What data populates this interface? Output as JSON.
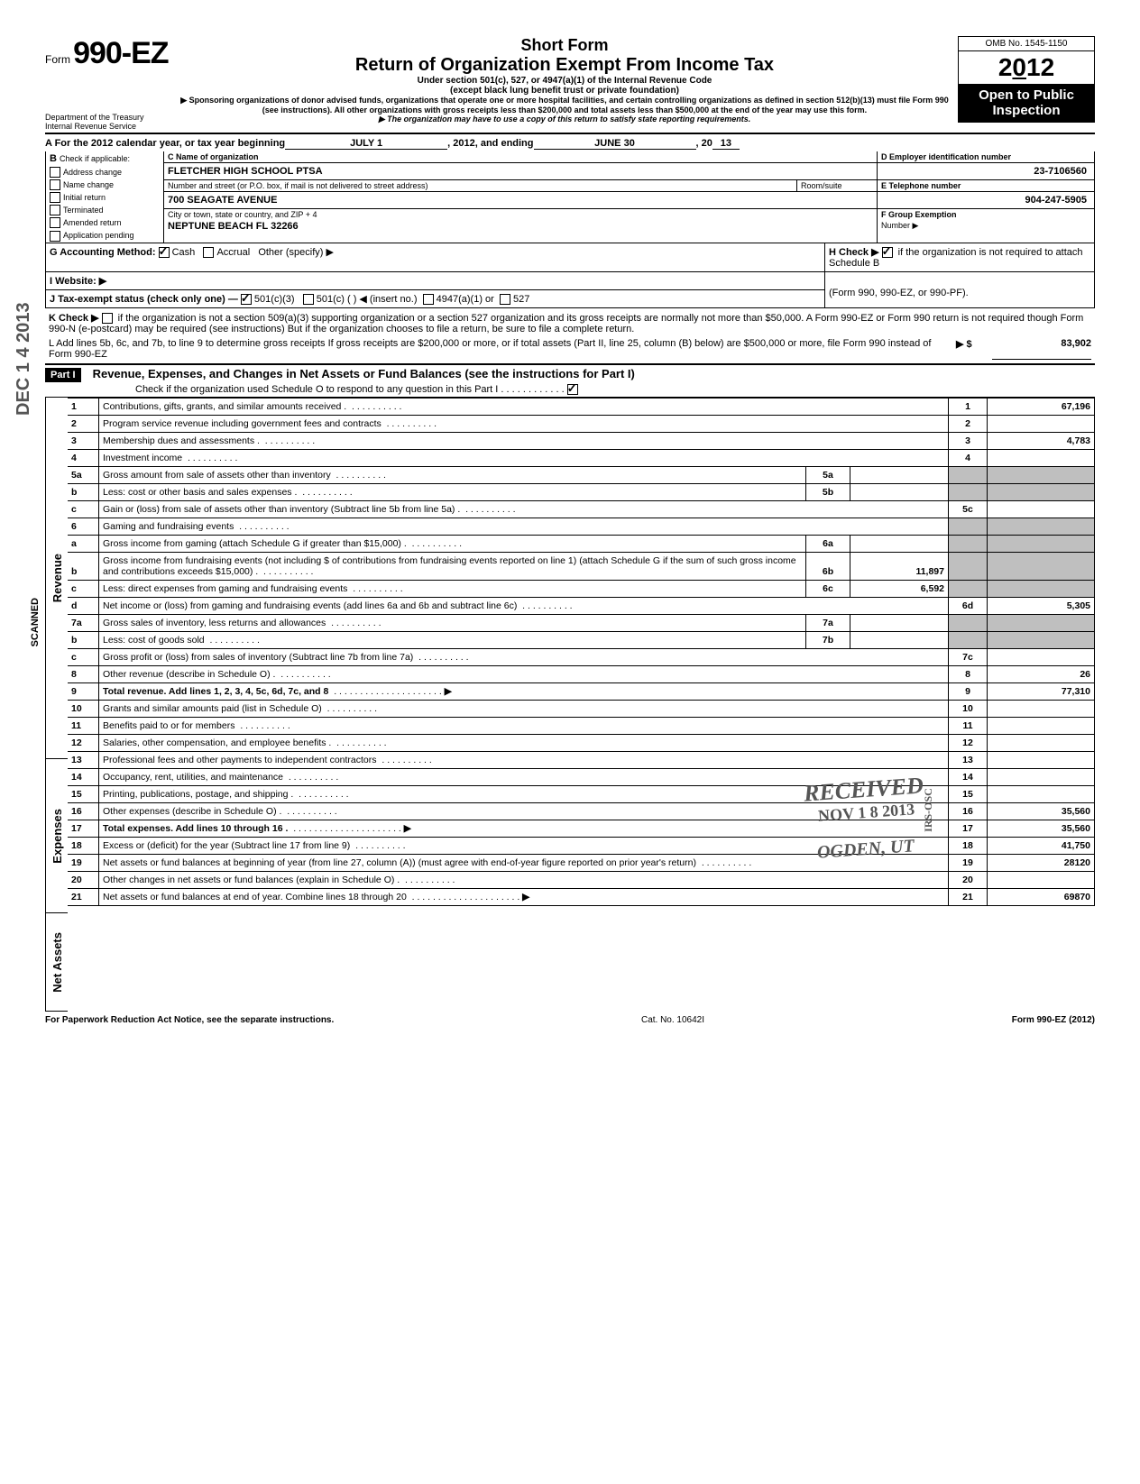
{
  "header": {
    "form_label": "Form",
    "form_number": "990-EZ",
    "short_form": "Short Form",
    "main_title": "Return of Organization Exempt From Income Tax",
    "subtitle1": "Under section 501(c), 527, or 4947(a)(1) of the Internal Revenue Code",
    "subtitle2": "(except black lung benefit trust or private foundation)",
    "sponsor_note": "▶ Sponsoring organizations of donor advised funds, organizations that operate one or more hospital facilities, and certain controlling organizations as defined in section 512(b)(13) must file Form 990 (see instructions). All other organizations with gross receipts less than $200,000 and total assets less than $500,000 at the end of the year may use this form.",
    "copy_note": "▶ The organization may have to use a copy of this return to satisfy state reporting requirements.",
    "omb": "OMB No. 1545-1150",
    "year": "2012",
    "open_public_1": "Open to Public",
    "open_public_2": "Inspection",
    "dept1": "Department of the Treasury",
    "dept2": "Internal Revenue Service"
  },
  "lineA": {
    "prefix": "A For the 2012 calendar year, or tax year beginning",
    "begin": "JULY 1",
    "mid": ", 2012, and ending",
    "end": "JUNE 30",
    "suffix": ", 20",
    "yy": "13"
  },
  "boxB": {
    "label": "B",
    "sub": "Check if applicable:",
    "items": [
      "Address change",
      "Name change",
      "Initial return",
      "Terminated",
      "Amended return",
      "Application pending"
    ]
  },
  "boxC": {
    "label": "C Name of organization",
    "org_name": "FLETCHER HIGH SCHOOL PTSA",
    "addr_label": "Number and street (or P.O. box, if mail is not delivered to street address)",
    "room_label": "Room/suite",
    "street": "700 SEAGATE AVENUE",
    "city_label": "City or town, state or country, and ZIP + 4",
    "city": "NEPTUNE BEACH FL 32266"
  },
  "boxD": {
    "label": "D Employer identification number",
    "value": "23-7106560"
  },
  "boxE": {
    "label": "E Telephone number",
    "value": "904-247-5905"
  },
  "boxF": {
    "label": "F Group Exemption",
    "sub": "Number ▶"
  },
  "lineG": {
    "label": "G Accounting Method:",
    "cash": "Cash",
    "accrual": "Accrual",
    "other": "Other (specify) ▶"
  },
  "lineH": {
    "label": "H Check ▶",
    "text": "if the organization is not required to attach Schedule B",
    "paren": "(Form 990, 990-EZ, or 990-PF)."
  },
  "lineI": {
    "label": "I  Website: ▶"
  },
  "lineJ": {
    "label": "J Tax-exempt status (check only one) —",
    "c3": "501(c)(3)",
    "c": "501(c) (",
    "insert": ") ◀ (insert no.)",
    "a1": "4947(a)(1) or",
    "s527": "527"
  },
  "lineK": {
    "label": "K Check ▶",
    "text": "if the organization is not a section 509(a)(3) supporting organization or a section 527 organization and its gross receipts are normally not more than $50,000. A Form 990-EZ or Form 990 return is not required though Form 990-N (e-postcard) may be required (see instructions)  But if the organization chooses to file a return, be sure to file a complete return."
  },
  "lineL": {
    "text": "L Add lines 5b, 6c, and 7b, to line 9 to determine gross receipts  If gross receipts are $200,000 or more, or if total assets (Part II, line 25, column (B) below) are $500,000 or more, file Form 990 instead of Form 990-EZ",
    "arrow": "▶ $",
    "value": "83,902"
  },
  "part1": {
    "tag": "Part I",
    "title": "Revenue, Expenses, and Changes in Net Assets or Fund Balances (see the instructions for Part I)",
    "check_line": "Check if the organization used Schedule O to respond to any question in this Part I . . . . . . . . . . . ."
  },
  "sections": {
    "revenue": "Revenue",
    "expenses": "Expenses",
    "netassets": "Net Assets"
  },
  "stamps": {
    "received": "RECEIVED",
    "date": "NOV 1 8 2013",
    "ogden": "OGDEN, UT",
    "irs": "IRS-OSC",
    "dec": "DEC 1 4 2013",
    "scanned": "SCANNED"
  },
  "lines": [
    {
      "n": "1",
      "d": "Contributions, gifts, grants, and similar amounts received .",
      "box": "1",
      "amt": "67,196"
    },
    {
      "n": "2",
      "d": "Program service revenue including government fees and contracts",
      "box": "2",
      "amt": ""
    },
    {
      "n": "3",
      "d": "Membership dues and assessments .",
      "box": "3",
      "amt": "4,783"
    },
    {
      "n": "4",
      "d": "Investment income",
      "box": "4",
      "amt": ""
    },
    {
      "n": "5a",
      "d": "Gross amount from sale of assets other than inventory",
      "mid": "5a",
      "midamt": ""
    },
    {
      "n": "b",
      "d": "Less: cost or other basis and sales expenses .",
      "mid": "5b",
      "midamt": ""
    },
    {
      "n": "c",
      "d": "Gain or (loss) from sale of assets other than inventory (Subtract line 5b from line 5a) .",
      "box": "5c",
      "amt": ""
    },
    {
      "n": "6",
      "d": "Gaming and fundraising events"
    },
    {
      "n": "a",
      "d": "Gross income from gaming (attach Schedule G if greater than $15,000) .",
      "mid": "6a",
      "midamt": ""
    },
    {
      "n": "b",
      "d": "Gross income from fundraising events (not including  $                         of contributions from fundraising events reported on line 1) (attach Schedule G if the sum of such gross income and contributions exceeds $15,000) .",
      "mid": "6b",
      "midamt": "11,897"
    },
    {
      "n": "c",
      "d": "Less: direct expenses from gaming and fundraising events",
      "mid": "6c",
      "midamt": "6,592"
    },
    {
      "n": "d",
      "d": "Net income or (loss) from gaming and fundraising events (add lines 6a and 6b and subtract line 6c)",
      "box": "6d",
      "amt": "5,305"
    },
    {
      "n": "7a",
      "d": "Gross sales of inventory, less returns and allowances",
      "mid": "7a",
      "midamt": ""
    },
    {
      "n": "b",
      "d": "Less: cost of goods sold",
      "mid": "7b",
      "midamt": ""
    },
    {
      "n": "c",
      "d": "Gross profit or (loss) from sales of inventory (Subtract line 7b from line 7a)",
      "box": "7c",
      "amt": ""
    },
    {
      "n": "8",
      "d": "Other revenue (describe in Schedule O) .",
      "box": "8",
      "amt": "26"
    },
    {
      "n": "9",
      "d": "Total revenue. Add lines 1, 2, 3, 4, 5c, 6d, 7c, and 8",
      "bold": true,
      "arrow": true,
      "box": "9",
      "amt": "77,310"
    },
    {
      "n": "10",
      "d": "Grants and similar amounts paid (list in Schedule O)",
      "box": "10",
      "amt": ""
    },
    {
      "n": "11",
      "d": "Benefits paid to or for members",
      "box": "11",
      "amt": ""
    },
    {
      "n": "12",
      "d": "Salaries, other compensation, and employee benefits .",
      "box": "12",
      "amt": ""
    },
    {
      "n": "13",
      "d": "Professional fees and other payments to independent contractors",
      "box": "13",
      "amt": ""
    },
    {
      "n": "14",
      "d": "Occupancy, rent, utilities, and maintenance",
      "box": "14",
      "amt": ""
    },
    {
      "n": "15",
      "d": "Printing, publications, postage, and shipping .",
      "box": "15",
      "amt": ""
    },
    {
      "n": "16",
      "d": "Other expenses (describe in Schedule O) .",
      "box": "16",
      "amt": "35,560"
    },
    {
      "n": "17",
      "d": "Total expenses. Add lines 10 through 16 .",
      "bold": true,
      "arrow": true,
      "box": "17",
      "amt": "35,560"
    },
    {
      "n": "18",
      "d": "Excess or (deficit) for the year (Subtract line 17 from line 9)",
      "box": "18",
      "amt": "41,750"
    },
    {
      "n": "19",
      "d": "Net assets or fund balances at beginning of year (from line 27, column (A)) (must agree with end-of-year figure reported on prior year's return)",
      "box": "19",
      "amt": "28120"
    },
    {
      "n": "20",
      "d": "Other changes in net assets or fund balances (explain in Schedule O) .",
      "box": "20",
      "amt": ""
    },
    {
      "n": "21",
      "d": "Net assets or fund balances at end of year. Combine lines 18 through 20",
      "arrow": true,
      "box": "21",
      "amt": "69870"
    }
  ],
  "footer": {
    "left": "For Paperwork Reduction Act Notice, see the separate instructions.",
    "mid": "Cat. No. 10642I",
    "right": "Form 990-EZ (2012)"
  }
}
